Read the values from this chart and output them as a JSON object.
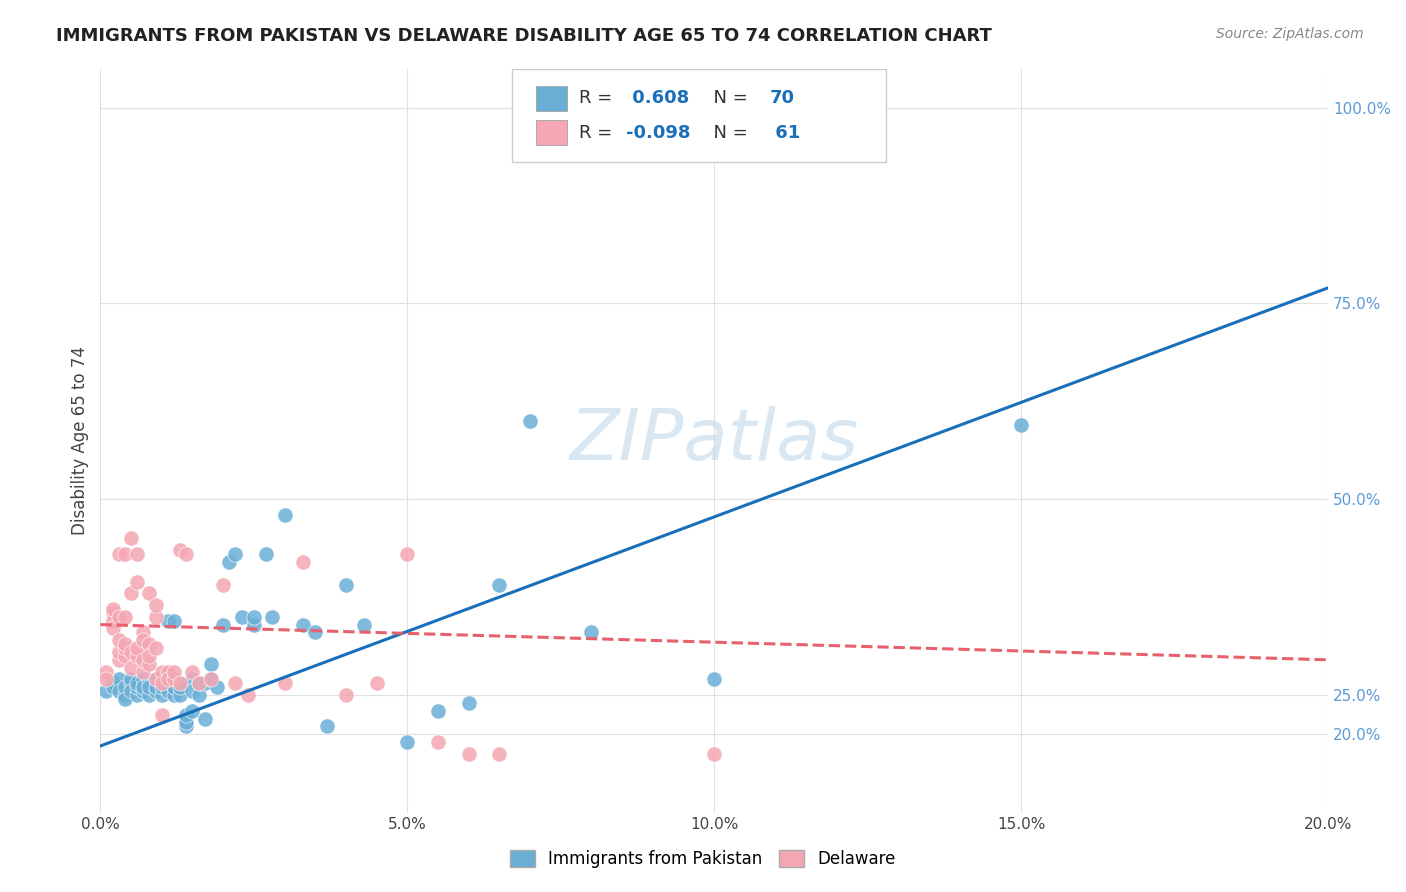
{
  "title": "IMMIGRANTS FROM PAKISTAN VS DELAWARE DISABILITY AGE 65 TO 74 CORRELATION CHART",
  "source": "Source: ZipAtlas.com",
  "xlabel_bottom": "",
  "ylabel": "Disability Age 65 to 74",
  "x_ticklabels": [
    "0.0%",
    "5.0%",
    "10.0%",
    "15.0%",
    "20.0%"
  ],
  "x_ticks": [
    0.0,
    0.05,
    0.1,
    0.15,
    0.2
  ],
  "y_ticklabels_right": [
    "20.0%",
    "25.0%",
    "50.0%",
    "75.0%",
    "100.0%"
  ],
  "y_ticks_right": [
    0.2,
    0.25,
    0.5,
    0.75,
    1.0
  ],
  "xlim": [
    0.0,
    0.2
  ],
  "ylim": [
    0.1,
    1.05
  ],
  "blue_r": 0.608,
  "blue_n": 70,
  "pink_r": -0.098,
  "pink_n": 61,
  "blue_color": "#6aaed6",
  "pink_color": "#f4a7b2",
  "blue_line_color": "#1a6fba",
  "pink_line_color": "#e8606e",
  "pink_line_dashed": true,
  "watermark": "ZIPatlas",
  "legend_labels": [
    "Immigrants from Pakistan",
    "Delaware"
  ],
  "background_color": "#ffffff",
  "grid_color": "#e0e0e0",
  "blue_scatter": [
    [
      0.001,
      0.255
    ],
    [
      0.002,
      0.265
    ],
    [
      0.002,
      0.26
    ],
    [
      0.003,
      0.27
    ],
    [
      0.003,
      0.255
    ],
    [
      0.004,
      0.25
    ],
    [
      0.004,
      0.26
    ],
    [
      0.004,
      0.245
    ],
    [
      0.005,
      0.265
    ],
    [
      0.005,
      0.27
    ],
    [
      0.005,
      0.255
    ],
    [
      0.006,
      0.25
    ],
    [
      0.006,
      0.26
    ],
    [
      0.006,
      0.265
    ],
    [
      0.007,
      0.255
    ],
    [
      0.007,
      0.27
    ],
    [
      0.007,
      0.26
    ],
    [
      0.008,
      0.25
    ],
    [
      0.008,
      0.265
    ],
    [
      0.008,
      0.26
    ],
    [
      0.009,
      0.255
    ],
    [
      0.009,
      0.27
    ],
    [
      0.009,
      0.26
    ],
    [
      0.01,
      0.25
    ],
    [
      0.01,
      0.265
    ],
    [
      0.01,
      0.26
    ],
    [
      0.011,
      0.255
    ],
    [
      0.011,
      0.345
    ],
    [
      0.011,
      0.27
    ],
    [
      0.012,
      0.25
    ],
    [
      0.012,
      0.345
    ],
    [
      0.012,
      0.26
    ],
    [
      0.013,
      0.265
    ],
    [
      0.013,
      0.25
    ],
    [
      0.013,
      0.26
    ],
    [
      0.014,
      0.21
    ],
    [
      0.014,
      0.215
    ],
    [
      0.014,
      0.225
    ],
    [
      0.015,
      0.27
    ],
    [
      0.015,
      0.255
    ],
    [
      0.015,
      0.23
    ],
    [
      0.016,
      0.25
    ],
    [
      0.016,
      0.265
    ],
    [
      0.017,
      0.22
    ],
    [
      0.017,
      0.265
    ],
    [
      0.018,
      0.29
    ],
    [
      0.018,
      0.27
    ],
    [
      0.019,
      0.26
    ],
    [
      0.02,
      0.34
    ],
    [
      0.021,
      0.42
    ],
    [
      0.022,
      0.43
    ],
    [
      0.023,
      0.35
    ],
    [
      0.025,
      0.34
    ],
    [
      0.025,
      0.35
    ],
    [
      0.027,
      0.43
    ],
    [
      0.028,
      0.35
    ],
    [
      0.03,
      0.48
    ],
    [
      0.033,
      0.34
    ],
    [
      0.035,
      0.33
    ],
    [
      0.037,
      0.21
    ],
    [
      0.04,
      0.39
    ],
    [
      0.043,
      0.34
    ],
    [
      0.05,
      0.19
    ],
    [
      0.055,
      0.23
    ],
    [
      0.06,
      0.24
    ],
    [
      0.065,
      0.39
    ],
    [
      0.07,
      0.6
    ],
    [
      0.08,
      0.33
    ],
    [
      0.1,
      0.27
    ],
    [
      0.15,
      0.595
    ]
  ],
  "pink_scatter": [
    [
      0.001,
      0.28
    ],
    [
      0.001,
      0.27
    ],
    [
      0.002,
      0.355
    ],
    [
      0.002,
      0.345
    ],
    [
      0.002,
      0.335
    ],
    [
      0.002,
      0.36
    ],
    [
      0.003,
      0.295
    ],
    [
      0.003,
      0.305
    ],
    [
      0.003,
      0.32
    ],
    [
      0.003,
      0.35
    ],
    [
      0.003,
      0.43
    ],
    [
      0.004,
      0.3
    ],
    [
      0.004,
      0.31
    ],
    [
      0.004,
      0.315
    ],
    [
      0.004,
      0.35
    ],
    [
      0.004,
      0.43
    ],
    [
      0.005,
      0.285
    ],
    [
      0.005,
      0.305
    ],
    [
      0.005,
      0.38
    ],
    [
      0.005,
      0.45
    ],
    [
      0.006,
      0.3
    ],
    [
      0.006,
      0.31
    ],
    [
      0.006,
      0.395
    ],
    [
      0.006,
      0.43
    ],
    [
      0.007,
      0.28
    ],
    [
      0.007,
      0.295
    ],
    [
      0.007,
      0.33
    ],
    [
      0.007,
      0.32
    ],
    [
      0.008,
      0.29
    ],
    [
      0.008,
      0.315
    ],
    [
      0.008,
      0.3
    ],
    [
      0.008,
      0.38
    ],
    [
      0.009,
      0.27
    ],
    [
      0.009,
      0.31
    ],
    [
      0.009,
      0.35
    ],
    [
      0.009,
      0.365
    ],
    [
      0.01,
      0.28
    ],
    [
      0.01,
      0.265
    ],
    [
      0.01,
      0.225
    ],
    [
      0.011,
      0.28
    ],
    [
      0.011,
      0.27
    ],
    [
      0.012,
      0.27
    ],
    [
      0.012,
      0.28
    ],
    [
      0.013,
      0.265
    ],
    [
      0.013,
      0.435
    ],
    [
      0.014,
      0.43
    ],
    [
      0.015,
      0.28
    ],
    [
      0.016,
      0.265
    ],
    [
      0.018,
      0.27
    ],
    [
      0.02,
      0.39
    ],
    [
      0.022,
      0.265
    ],
    [
      0.024,
      0.25
    ],
    [
      0.03,
      0.265
    ],
    [
      0.033,
      0.42
    ],
    [
      0.04,
      0.25
    ],
    [
      0.045,
      0.265
    ],
    [
      0.05,
      0.43
    ],
    [
      0.055,
      0.19
    ],
    [
      0.06,
      0.175
    ],
    [
      0.065,
      0.175
    ],
    [
      0.1,
      0.175
    ]
  ],
  "blue_line": [
    [
      0.0,
      0.185
    ],
    [
      0.2,
      0.77
    ]
  ],
  "pink_line": [
    [
      0.0,
      0.34
    ],
    [
      0.2,
      0.295
    ]
  ]
}
